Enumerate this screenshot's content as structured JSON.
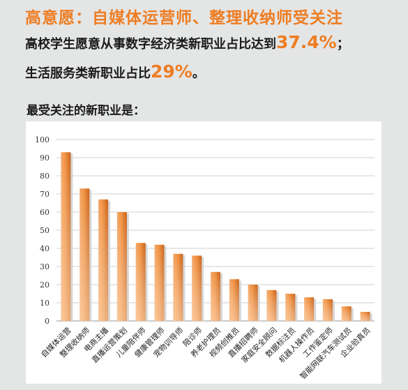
{
  "headline": "高意愿：自媒体运营师、整理收纳师受关注",
  "line1": {
    "text": "高校学生愿意从事数字经济类新职业占比达到",
    "value": "37.4%",
    "end": "；"
  },
  "line2": {
    "text": "生活服务类新职业占比",
    "value": "29%",
    "end": "。"
  },
  "section_title": "最受关注的新职业是：",
  "chart_data": {
    "type": "bar",
    "categories": [
      "自媒体运营",
      "整理收纳师",
      "电商主播",
      "直播运营策划",
      "儿童陪伴师",
      "健康管理师",
      "宠物训导师",
      "陪诊师",
      "养老护理员",
      "视频创推员",
      "直播招聘师",
      "家庭安全顾问",
      "数据标注员",
      "机器人操作员",
      "工作鉴定师",
      "智能网联汽车测试员",
      "企业验真员"
    ],
    "values": [
      93,
      73,
      67,
      60,
      43,
      42,
      37,
      36,
      27,
      23,
      20,
      17,
      15,
      13,
      12,
      8,
      5
    ],
    "ylim": [
      0,
      100
    ],
    "yticks": [
      "0",
      "10",
      "20",
      "30",
      "40",
      "50",
      "60",
      "70",
      "80",
      "90",
      "100"
    ],
    "grid": true,
    "bar_color": "#ee8a2e"
  }
}
